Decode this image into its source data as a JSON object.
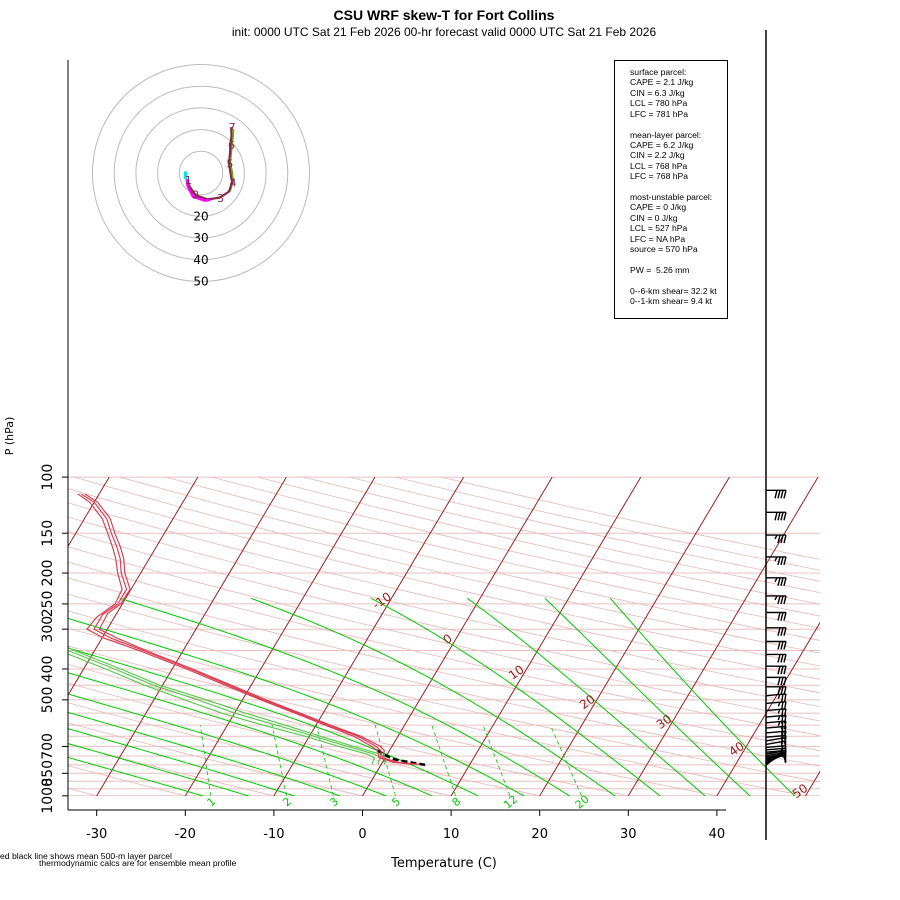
{
  "title": "CSU WRF skew-T for Fort Collins",
  "subtitle": "init: 0000 UTC Sat 21 Feb 2026     00-hr forecast valid 0000 UTC Sat 21 Feb 2026",
  "stats": {
    "surface": [
      "surface parcel:",
      "CAPE = 2.1 J/kg",
      "CIN = 6.3 J/kg",
      "LCL = 780 hPa",
      "LFC = 781 hPa"
    ],
    "mean_layer": [
      "mean-layer parcel:",
      "CAPE = 6.2 J/kg",
      "CIN = 2.2 J/kg",
      "LCL = 768 hPa",
      "LFC = 768 hPa"
    ],
    "most_unstable": [
      "most-unstable parcel:",
      "CAPE = 0 J/kg",
      "CIN = 0 J/kg",
      "LCL = 527 hPa",
      "LFC = NA hPa",
      "source = 570 hPa"
    ],
    "pw": [
      "PW =  5.26 mm"
    ],
    "shear": [
      "0--6-km shear= 32.2 kt",
      "0--1-km shear= 9.4 kt"
    ]
  },
  "footnotes": {
    "line1": "ed black line shows mean 500-m layer parcel",
    "line2": "thermodynamic calcs are for ensemble mean profile"
  },
  "colors": {
    "background": "#ffffff",
    "isotherm": "#9a2020",
    "dry_adiabat": "#e8b8b8",
    "moist_adiabat": "#00c800",
    "mixing_ratio": "#00c800",
    "isobar": "#e8c0c0",
    "temperature": "#d94055",
    "dewpoint": "#5ac850",
    "parcel": "#000000",
    "hodo_ring": "#bbbbbb",
    "hodo_trace_a": "#8b2252",
    "hodo_trace_b": "#5ab400",
    "hodo_trace_c": "#ff00ff",
    "hodo_trace_d": "#00e5ee",
    "wind_barb": "#000000"
  },
  "chart_data": {
    "type": "line",
    "chart_kind": "skew-T log-P diagram",
    "xlabel": "Temperature (C)",
    "ylabel": "P (hPa)",
    "y_scale": "log",
    "xlim": [
      -33,
      52
    ],
    "ylim": [
      1050,
      100
    ],
    "x_ticks": [
      -30,
      -20,
      -10,
      0,
      10,
      20,
      30,
      40
    ],
    "x_tick_labels": [
      "-30",
      "-20",
      "-10",
      "0",
      "10",
      "20",
      "30",
      "40"
    ],
    "y_ticks": [
      1000,
      850,
      700,
      500,
      400,
      300,
      250,
      200,
      150,
      100
    ],
    "y_tick_labels": [
      "1000",
      "850",
      "700",
      "500",
      "400",
      "300",
      "250",
      "200",
      "150",
      "100"
    ],
    "isotherm_labels": [
      {
        "t": -10,
        "label": "-10"
      },
      {
        "t": 0,
        "label": "0"
      },
      {
        "t": 10,
        "label": "10"
      },
      {
        "t": 20,
        "label": "20"
      },
      {
        "t": 30,
        "label": "30"
      },
      {
        "t": 40,
        "label": "40"
      },
      {
        "t": 50,
        "label": "50"
      }
    ],
    "mixing_ratio_labels": [
      "1",
      "2",
      "3",
      "5",
      "8",
      "12",
      "20"
    ],
    "mixing_ratio_values": [
      1,
      2,
      3,
      5,
      8,
      12,
      20
    ],
    "series": [
      {
        "name": "temperature",
        "members": [
          [
            [
              797,
              4.0
            ],
            [
              785,
              1.5
            ],
            [
              760,
              -0.5
            ],
            [
              740,
              -0.7
            ],
            [
              720,
              -1.0
            ],
            [
              700,
              -1.8
            ],
            [
              650,
              -4.5
            ],
            [
              600,
              -8.7
            ],
            [
              550,
              -12.9
            ],
            [
              500,
              -17.6
            ],
            [
              450,
              -22.5
            ],
            [
              400,
              -28.0
            ],
            [
              350,
              -34.5
            ],
            [
              320,
              -39.0
            ],
            [
              300,
              -41.5
            ],
            [
              270,
              -41.5
            ],
            [
              250,
              -40.5
            ],
            [
              225,
              -40.5
            ],
            [
              200,
              -42.2
            ],
            [
              180,
              -43.3
            ],
            [
              165,
              -44.5
            ],
            [
              150,
              -46.0
            ],
            [
              135,
              -47.5
            ],
            [
              120,
              -50.0
            ],
            [
              113,
              -52.0
            ]
          ],
          [
            [
              797,
              3.6
            ],
            [
              785,
              1.2
            ],
            [
              760,
              -0.7
            ],
            [
              740,
              -1.0
            ],
            [
              720,
              -1.4
            ],
            [
              700,
              -2.3
            ],
            [
              650,
              -5.0
            ],
            [
              600,
              -9.0
            ],
            [
              550,
              -13.2
            ],
            [
              500,
              -17.9
            ],
            [
              450,
              -22.9
            ],
            [
              400,
              -28.4
            ],
            [
              350,
              -35.0
            ],
            [
              320,
              -39.8
            ],
            [
              300,
              -42.3
            ],
            [
              275,
              -42.0
            ],
            [
              250,
              -40.8
            ],
            [
              225,
              -41.0
            ],
            [
              200,
              -42.6
            ],
            [
              180,
              -43.8
            ],
            [
              165,
              -45.0
            ],
            [
              150,
              -46.4
            ],
            [
              135,
              -48.0
            ],
            [
              120,
              -50.5
            ],
            [
              113,
              -52.4
            ]
          ],
          [
            [
              797,
              4.3
            ],
            [
              785,
              1.8
            ],
            [
              760,
              -0.3
            ],
            [
              740,
              -0.4
            ],
            [
              720,
              -0.6
            ],
            [
              700,
              -1.3
            ],
            [
              650,
              -4.2
            ],
            [
              600,
              -8.4
            ],
            [
              550,
              -12.6
            ],
            [
              500,
              -17.3
            ],
            [
              450,
              -22.2
            ],
            [
              400,
              -27.7
            ],
            [
              350,
              -34.2
            ],
            [
              320,
              -38.3
            ],
            [
              300,
              -40.9
            ],
            [
              268,
              -41.0
            ],
            [
              250,
              -40.2
            ],
            [
              225,
              -40.1
            ],
            [
              200,
              -41.8
            ],
            [
              180,
              -42.9
            ],
            [
              165,
              -44.1
            ],
            [
              150,
              -45.6
            ],
            [
              135,
              -47.1
            ],
            [
              120,
              -49.6
            ],
            [
              113,
              -51.6
            ]
          ]
        ]
      },
      {
        "name": "dewpoint",
        "members": [
          [
            [
              797,
              -0.3
            ],
            [
              785,
              -0.5
            ],
            [
              760,
              -0.5
            ],
            [
              740,
              -1.5
            ],
            [
              700,
              -5.0
            ],
            [
              650,
              -9.5
            ],
            [
              600,
              -14.5
            ],
            [
              550,
              -20.0
            ],
            [
              500,
              -25.0
            ],
            [
              450,
              -31.0
            ],
            [
              400,
              -36.5
            ],
            [
              350,
              -43.0
            ],
            [
              300,
              -49.5
            ],
            [
              260,
              -55.5
            ],
            [
              230,
              -60.0
            ],
            [
              210,
              -64.0
            ],
            [
              200,
              -66.0
            ]
          ],
          [
            [
              797,
              -1.0
            ],
            [
              785,
              -1.1
            ],
            [
              760,
              -1.2
            ],
            [
              740,
              -2.3
            ],
            [
              700,
              -6.0
            ],
            [
              650,
              -10.5
            ],
            [
              600,
              -16.0
            ],
            [
              550,
              -21.5
            ],
            [
              500,
              -26.5
            ],
            [
              450,
              -32.0
            ],
            [
              400,
              -37.5
            ],
            [
              350,
              -44.0
            ],
            [
              300,
              -51.0
            ],
            [
              270,
              -56.0
            ],
            [
              250,
              -57.5
            ],
            [
              220,
              -59.0
            ],
            [
              200,
              -61.5
            ]
          ],
          [
            [
              797,
              0.4
            ],
            [
              785,
              0.2
            ],
            [
              760,
              0.1
            ],
            [
              740,
              -0.8
            ],
            [
              700,
              -4.3
            ],
            [
              650,
              -8.8
            ],
            [
              600,
              -13.5
            ],
            [
              550,
              -18.8
            ],
            [
              500,
              -24.0
            ],
            [
              450,
              -30.3
            ],
            [
              400,
              -35.8
            ],
            [
              350,
              -42.3
            ],
            [
              300,
              -48.6
            ],
            [
              260,
              -54.0
            ],
            [
              230,
              -57.5
            ],
            [
              200,
              -60.0
            ],
            [
              185,
              -61.5
            ]
          ]
        ]
      },
      {
        "name": "parcel",
        "style": "dashed",
        "points": [
          [
            800,
            5.0
          ],
          [
            780,
            2.5
          ],
          [
            770,
            1.3
          ],
          [
            760,
            0.6
          ],
          [
            740,
            -0.4
          ],
          [
            720,
            -1.4
          ]
        ]
      }
    ],
    "winds": [
      {
        "p": 802,
        "dir": 230,
        "spd": 8
      },
      {
        "p": 798,
        "dir": 235,
        "spd": 9
      },
      {
        "p": 794,
        "dir": 240,
        "spd": 10
      },
      {
        "p": 790,
        "dir": 240,
        "spd": 10
      },
      {
        "p": 786,
        "dir": 245,
        "spd": 11
      },
      {
        "p": 781,
        "dir": 250,
        "spd": 12
      },
      {
        "p": 776,
        "dir": 250,
        "spd": 12
      },
      {
        "p": 770,
        "dir": 255,
        "spd": 13
      },
      {
        "p": 764,
        "dir": 255,
        "spd": 13
      },
      {
        "p": 757,
        "dir": 260,
        "spd": 14
      },
      {
        "p": 749,
        "dir": 260,
        "spd": 14
      },
      {
        "p": 740,
        "dir": 260,
        "spd": 15
      },
      {
        "p": 730,
        "dir": 265,
        "spd": 15
      },
      {
        "p": 718,
        "dir": 265,
        "spd": 16
      },
      {
        "p": 705,
        "dir": 265,
        "spd": 16
      },
      {
        "p": 690,
        "dir": 260,
        "spd": 17
      },
      {
        "p": 673,
        "dir": 260,
        "spd": 18
      },
      {
        "p": 655,
        "dir": 265,
        "spd": 20
      },
      {
        "p": 635,
        "dir": 265,
        "spd": 22
      },
      {
        "p": 613,
        "dir": 265,
        "spd": 24
      },
      {
        "p": 590,
        "dir": 265,
        "spd": 26
      },
      {
        "p": 566,
        "dir": 265,
        "spd": 27
      },
      {
        "p": 540,
        "dir": 265,
        "spd": 28
      },
      {
        "p": 513,
        "dir": 265,
        "spd": 28
      },
      {
        "p": 485,
        "dir": 265,
        "spd": 29
      },
      {
        "p": 455,
        "dir": 270,
        "spd": 30
      },
      {
        "p": 425,
        "dir": 270,
        "spd": 31
      },
      {
        "p": 392,
        "dir": 270,
        "spd": 31
      },
      {
        "p": 360,
        "dir": 270,
        "spd": 32
      },
      {
        "p": 328,
        "dir": 270,
        "spd": 33
      },
      {
        "p": 297,
        "dir": 270,
        "spd": 33
      },
      {
        "p": 266,
        "dir": 270,
        "spd": 34
      },
      {
        "p": 236,
        "dir": 270,
        "spd": 35
      },
      {
        "p": 207,
        "dir": 270,
        "spd": 35
      },
      {
        "p": 178,
        "dir": 270,
        "spd": 36
      },
      {
        "p": 152,
        "dir": 270,
        "spd": 38
      },
      {
        "p": 129,
        "dir": 270,
        "spd": 40
      },
      {
        "p": 110,
        "dir": 270,
        "spd": 42
      }
    ],
    "hodograph": {
      "ring_labels": [
        "20",
        "30",
        "40",
        "50"
      ],
      "ring_speeds": [
        10,
        20,
        30,
        40,
        50
      ],
      "height_labels": [
        "1",
        "2",
        "3",
        "4",
        "5",
        "6",
        "7",
        "8",
        "9",
        "10",
        "11",
        "12",
        "13"
      ],
      "trace_a": [
        [
          -4.4,
          -2.3
        ],
        [
          -4.0,
          -4.0
        ],
        [
          -2.0,
          -7.0
        ],
        [
          2.0,
          -8.5
        ],
        [
          6.0,
          -8.0
        ],
        [
          9.0,
          -6.0
        ],
        [
          10.0,
          -3.0
        ],
        [
          9.5,
          0.0
        ],
        [
          9.0,
          3.0
        ],
        [
          9.3,
          6.0
        ],
        [
          9.5,
          9.0
        ],
        [
          9.8,
          12.0
        ],
        [
          9.7,
          14.8
        ]
      ],
      "trace_b": [
        [
          -4.2,
          -2.5
        ],
        [
          -3.6,
          -4.3
        ],
        [
          -1.5,
          -7.3
        ],
        [
          2.5,
          -8.6
        ],
        [
          6.5,
          -7.7
        ],
        [
          9.4,
          -5.7
        ],
        [
          10.3,
          -2.6
        ],
        [
          10.0,
          0.4
        ],
        [
          9.4,
          3.4
        ],
        [
          9.7,
          6.4
        ],
        [
          10.0,
          9.4
        ],
        [
          10.4,
          12.4
        ],
        [
          10.4,
          14.3
        ]
      ],
      "trace_c": [
        [
          -4.6,
          -2.0
        ],
        [
          -4.3,
          -4.3
        ],
        [
          -2.6,
          -7.6
        ],
        [
          1.2,
          -8.9
        ],
        [
          3.0,
          -8.7
        ]
      ],
      "trace_d": [
        [
          -5.0,
          0.5
        ],
        [
          -5.0,
          -2.0
        ]
      ],
      "trace_c_start": [
        [
          -5.3,
          -1.0
        ]
      ]
    }
  }
}
